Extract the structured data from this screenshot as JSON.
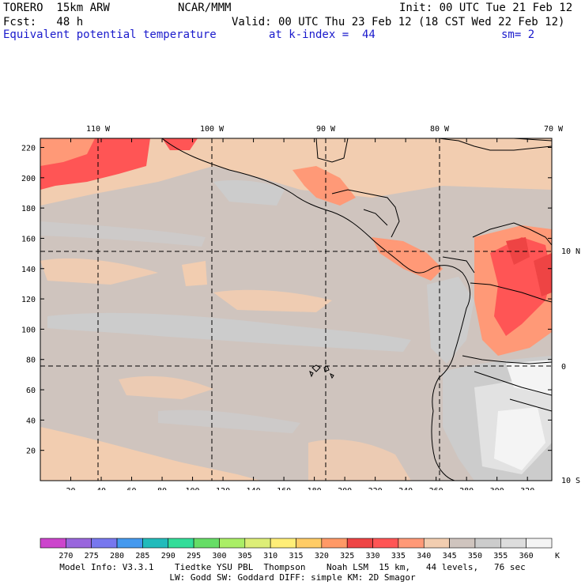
{
  "header": {
    "run": "TORERO  15km ARW",
    "org": "NCAR/MMM",
    "init": "Init: 00 UTC Tue 21 Feb 12",
    "fcst": "Fcst:   48 h",
    "valid": "Valid: 00 UTC Thu 23 Feb 12 (18 CST Wed 22 Feb 12)",
    "field": "Equivalent potential temperature",
    "level": "at k-index =  44",
    "smooth": "sm= 2"
  },
  "map": {
    "lon_labels": [
      "110 W",
      "100 W",
      "90 W",
      "80 W",
      "70 W"
    ],
    "lat_labels": [
      "10 N",
      "0",
      "10 S"
    ],
    "y_ticks": [
      "20",
      "40",
      "60",
      "80",
      "100",
      "120",
      "140",
      "160",
      "180",
      "200",
      "220"
    ],
    "x_ticks": [
      "20",
      "40",
      "60",
      "80",
      "100",
      "120",
      "140",
      "160",
      "180",
      "200",
      "220",
      "240",
      "260",
      "280",
      "300",
      "320"
    ],
    "grid_color": "#000000",
    "coast_color": "#000000"
  },
  "legend": {
    "labels": [
      "270",
      "275",
      "280",
      "285",
      "290",
      "295",
      "300",
      "305",
      "310",
      "315",
      "320",
      "325",
      "330",
      "335",
      "340",
      "345",
      "350",
      "355",
      "360"
    ],
    "unit": "K",
    "colors": [
      "#cc44cc",
      "#9966dd",
      "#7777ee",
      "#4499ee",
      "#22bbbb",
      "#33dd99",
      "#66dd66",
      "#aaee66",
      "#ddee77",
      "#ffee77",
      "#ffcc66",
      "#ff9966",
      "#ee4444",
      "#ff5555",
      "#ff9977",
      "#f2cdb0",
      "#cfc4be",
      "#cccccc",
      "#dddddd",
      "#f4f4f4"
    ]
  },
  "footer": {
    "line1": "Model Info: V3.3.1    Tiedtke YSU PBL  Thompson    Noah LSM  15 km,   44 levels,   76 sec",
    "line2": "LW: Godd SW: Goddard DIFF: simple KM: 2D Smagor"
  }
}
